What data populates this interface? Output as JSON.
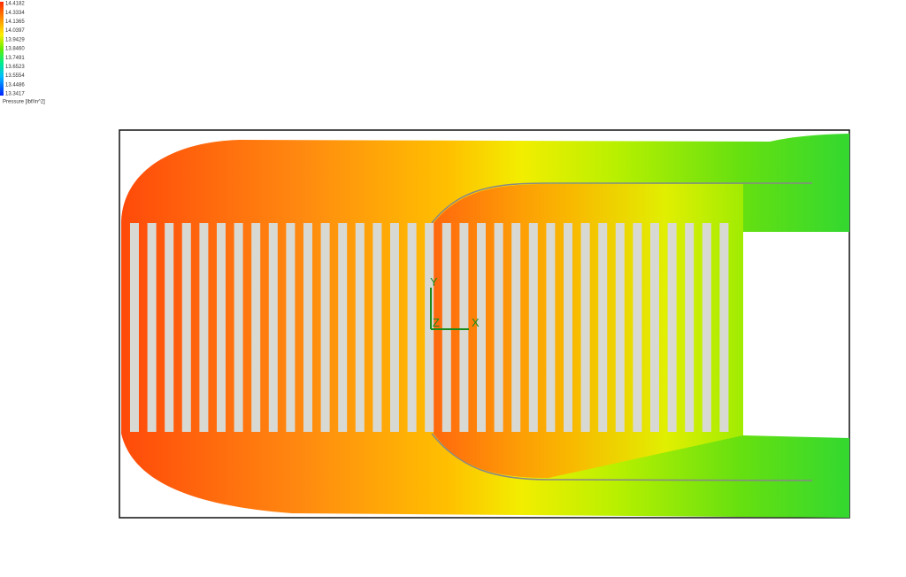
{
  "legend": {
    "labels": [
      "14.4182",
      "14.3334",
      "14.1365",
      "14.0397",
      "13.9429",
      "13.8460",
      "13.7491",
      "13.6523",
      "13.5554",
      "13.4486",
      "13.3417"
    ],
    "title": "Pressure [lbf/in^2]"
  },
  "triad": {
    "y": "Y",
    "z": "Z",
    "x": "X"
  }
}
